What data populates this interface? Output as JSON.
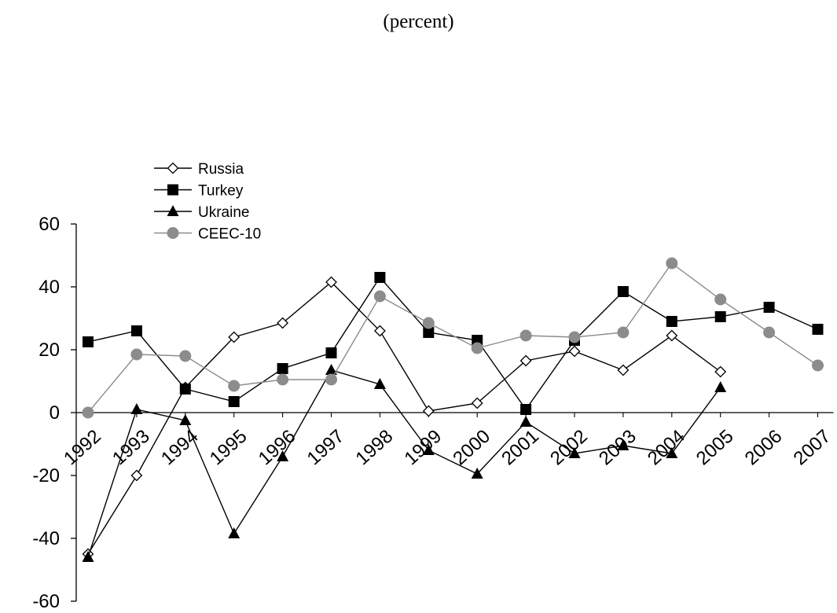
{
  "chart_data": {
    "type": "line",
    "title": "",
    "subtitle": "(percent)",
    "xlabel": "",
    "ylabel": "",
    "ylim": [
      -60,
      60
    ],
    "yticks": [
      -60,
      -40,
      -20,
      0,
      20,
      40,
      60
    ],
    "grid": false,
    "legend_position": "top-left",
    "categories": [
      "1992",
      "1993",
      "1994",
      "1995",
      "1996",
      "1997",
      "1998",
      "1999",
      "2000",
      "2001",
      "2002",
      "2003",
      "2004",
      "2005",
      "2006",
      "2007"
    ],
    "series": [
      {
        "name": "Russia",
        "color": "#000000",
        "marker": "diamond-open",
        "values": [
          -45,
          -20,
          8,
          24,
          28.5,
          41.5,
          26,
          0.5,
          3,
          16.5,
          19.5,
          13.5,
          24.5,
          13,
          null,
          null
        ]
      },
      {
        "name": "Turkey",
        "color": "#000000",
        "marker": "square-filled",
        "values": [
          22.5,
          26,
          7.5,
          3.5,
          14,
          19,
          43,
          25.5,
          23,
          1,
          23,
          38.5,
          29,
          30.5,
          33.5,
          26.5
        ]
      },
      {
        "name": "Ukraine",
        "color": "#000000",
        "marker": "triangle-filled",
        "values": [
          -46,
          1,
          -2.5,
          -38.5,
          -14,
          13.5,
          9,
          -12,
          -19.5,
          -3,
          -13,
          -10.5,
          -13,
          8,
          null,
          null
        ]
      },
      {
        "name": "CEEC-10",
        "color": "#8c8c8c",
        "marker": "circle-filled",
        "values": [
          0,
          18.5,
          18,
          8.5,
          10.5,
          10.5,
          37,
          28.5,
          20.5,
          24.5,
          24,
          25.5,
          47.5,
          36,
          25.5,
          15
        ]
      }
    ]
  }
}
